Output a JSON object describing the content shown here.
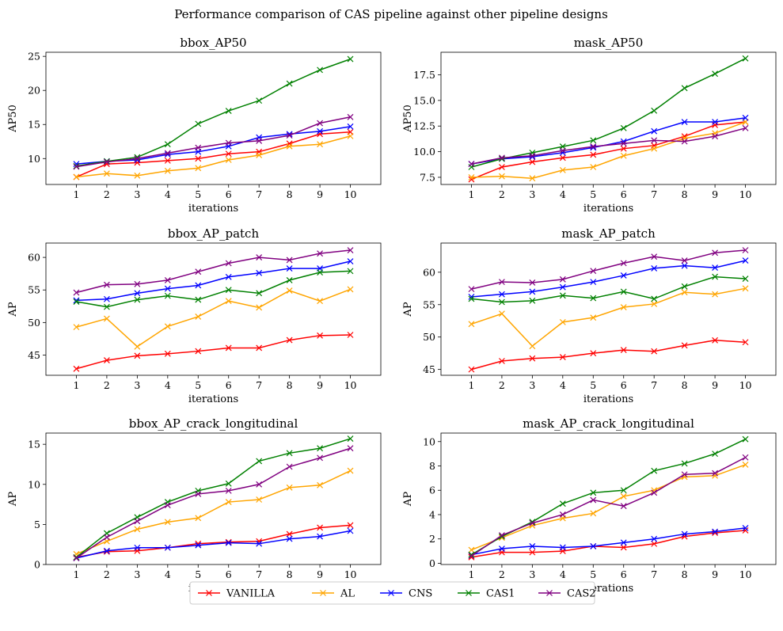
{
  "figure": {
    "suptitle": "Performance comparison of CAS pipeline against other pipeline designs"
  },
  "legend": {
    "placement": "bottom-center",
    "entries": [
      {
        "name": "VANILLA",
        "color": "#ff0000"
      },
      {
        "name": "AL",
        "color": "#ffa500"
      },
      {
        "name": "CNS",
        "color": "#0000ff"
      },
      {
        "name": "CAS1",
        "color": "#008000"
      },
      {
        "name": "CAS2",
        "color": "#800080"
      }
    ]
  },
  "chart_data": [
    {
      "type": "line",
      "title": "bbox_AP50",
      "xlabel": "iterations",
      "ylabel": "AP50",
      "x": [
        1,
        2,
        3,
        4,
        5,
        6,
        7,
        8,
        9,
        10
      ],
      "xlim": [
        0,
        11
      ],
      "ylim": [
        6.2,
        25.6
      ],
      "yticks": [
        10,
        15,
        20,
        25
      ],
      "ytick_labels": [
        "10",
        "15",
        "20",
        "25"
      ],
      "series": [
        {
          "name": "VANILLA",
          "color": "#ff0000",
          "values": [
            7.3,
            9.2,
            9.4,
            9.7,
            10.0,
            10.7,
            11.0,
            12.2,
            13.6,
            13.9
          ]
        },
        {
          "name": "AL",
          "color": "#ffa500",
          "values": [
            7.3,
            7.8,
            7.5,
            8.2,
            8.6,
            9.8,
            10.5,
            11.8,
            12.1,
            13.3
          ]
        },
        {
          "name": "CNS",
          "color": "#0000ff",
          "values": [
            9.2,
            9.6,
            9.8,
            10.6,
            11.0,
            11.8,
            13.1,
            13.6,
            14.0,
            14.7
          ]
        },
        {
          "name": "CAS1",
          "color": "#008000",
          "values": [
            8.9,
            9.6,
            10.2,
            12.1,
            15.1,
            17.0,
            18.5,
            21.0,
            23.0,
            24.6
          ]
        },
        {
          "name": "CAS2",
          "color": "#800080",
          "values": [
            8.8,
            9.5,
            10.0,
            10.8,
            11.6,
            12.3,
            12.6,
            13.4,
            15.2,
            16.1
          ]
        }
      ]
    },
    {
      "type": "line",
      "title": "mask_AP50",
      "xlabel": "iterations",
      "ylabel": "AP50",
      "x": [
        1,
        2,
        3,
        4,
        5,
        6,
        7,
        8,
        9,
        10
      ],
      "xlim": [
        0,
        11
      ],
      "ylim": [
        6.8,
        19.7
      ],
      "yticks": [
        7.5,
        10.0,
        12.5,
        15.0,
        17.5
      ],
      "ytick_labels": [
        "7.5",
        "10.0",
        "12.5",
        "15.0",
        "17.5"
      ],
      "series": [
        {
          "name": "VANILLA",
          "color": "#ff0000",
          "values": [
            7.3,
            8.5,
            9.0,
            9.4,
            9.7,
            10.3,
            10.6,
            11.5,
            12.6,
            12.9
          ]
        },
        {
          "name": "AL",
          "color": "#ffa500",
          "values": [
            7.5,
            7.6,
            7.4,
            8.2,
            8.5,
            9.6,
            10.3,
            11.3,
            11.8,
            12.9
          ]
        },
        {
          "name": "CNS",
          "color": "#0000ff",
          "values": [
            8.8,
            9.3,
            9.5,
            9.9,
            10.4,
            11.0,
            12.0,
            12.9,
            12.9,
            13.3
          ]
        },
        {
          "name": "CAS1",
          "color": "#008000",
          "values": [
            8.5,
            9.3,
            9.9,
            10.5,
            11.1,
            12.3,
            14.0,
            16.2,
            17.6,
            19.1
          ]
        },
        {
          "name": "CAS2",
          "color": "#800080",
          "values": [
            8.8,
            9.4,
            9.6,
            10.1,
            10.5,
            10.8,
            11.1,
            11.0,
            11.5,
            12.3
          ]
        }
      ]
    },
    {
      "type": "line",
      "title": "bbox_AP_patch",
      "xlabel": "iterations",
      "ylabel": "AP",
      "x": [
        1,
        2,
        3,
        4,
        5,
        6,
        7,
        8,
        9,
        10
      ],
      "xlim": [
        0,
        11
      ],
      "ylim": [
        41.9,
        62.2
      ],
      "yticks": [
        45,
        50,
        55,
        60
      ],
      "ytick_labels": [
        "45",
        "50",
        "55",
        "60"
      ],
      "series": [
        {
          "name": "VANILLA",
          "color": "#ff0000",
          "values": [
            42.9,
            44.2,
            44.9,
            45.2,
            45.6,
            46.1,
            46.1,
            47.3,
            48.0,
            48.1
          ]
        },
        {
          "name": "AL",
          "color": "#ffa500",
          "values": [
            49.3,
            50.6,
            46.3,
            49.4,
            50.9,
            53.3,
            52.3,
            54.9,
            53.3,
            55.1
          ]
        },
        {
          "name": "CNS",
          "color": "#0000ff",
          "values": [
            53.4,
            53.6,
            54.5,
            55.2,
            55.7,
            57.0,
            57.6,
            58.3,
            58.3,
            59.4
          ]
        },
        {
          "name": "CAS1",
          "color": "#008000",
          "values": [
            53.2,
            52.4,
            53.5,
            54.1,
            53.5,
            55.0,
            54.5,
            56.5,
            57.7,
            57.9
          ]
        },
        {
          "name": "CAS2",
          "color": "#800080",
          "values": [
            54.6,
            55.8,
            55.9,
            56.5,
            57.8,
            59.1,
            60.0,
            59.6,
            60.6,
            61.1
          ]
        }
      ]
    },
    {
      "type": "line",
      "title": "mask_AP_patch",
      "xlabel": "iterations",
      "ylabel": "AP",
      "x": [
        1,
        2,
        3,
        4,
        5,
        6,
        7,
        8,
        9,
        10
      ],
      "xlim": [
        0,
        11
      ],
      "ylim": [
        44.1,
        64.5
      ],
      "yticks": [
        45,
        50,
        55,
        60
      ],
      "ytick_labels": [
        "45",
        "50",
        "55",
        "60"
      ],
      "series": [
        {
          "name": "VANILLA",
          "color": "#ff0000",
          "values": [
            45.0,
            46.3,
            46.7,
            46.9,
            47.5,
            48.0,
            47.8,
            48.7,
            49.5,
            49.2
          ]
        },
        {
          "name": "AL",
          "color": "#ffa500",
          "values": [
            52.0,
            53.6,
            48.6,
            52.3,
            53.0,
            54.6,
            55.1,
            56.9,
            56.6,
            57.5
          ]
        },
        {
          "name": "CNS",
          "color": "#0000ff",
          "values": [
            56.2,
            56.6,
            57.0,
            57.7,
            58.5,
            59.5,
            60.6,
            61.0,
            60.7,
            61.8
          ]
        },
        {
          "name": "CAS1",
          "color": "#008000",
          "values": [
            55.9,
            55.4,
            55.6,
            56.4,
            56.0,
            57.0,
            55.9,
            57.8,
            59.3,
            59.0
          ]
        },
        {
          "name": "CAS2",
          "color": "#800080",
          "values": [
            57.4,
            58.5,
            58.4,
            58.9,
            60.2,
            61.4,
            62.4,
            61.8,
            63.0,
            63.4
          ]
        }
      ]
    },
    {
      "type": "line",
      "title": "bbox_AP_crack_longitudinal",
      "xlabel": "iterations",
      "ylabel": "AP",
      "x": [
        1,
        2,
        3,
        4,
        5,
        6,
        7,
        8,
        9,
        10
      ],
      "xlim": [
        0,
        11
      ],
      "ylim": [
        0,
        16.4
      ],
      "yticks": [
        0,
        5,
        10,
        15
      ],
      "ytick_labels": [
        "0",
        "5",
        "10",
        "15"
      ],
      "series": [
        {
          "name": "VANILLA",
          "color": "#ff0000",
          "values": [
            0.9,
            1.6,
            1.7,
            2.1,
            2.6,
            2.8,
            2.9,
            3.8,
            4.6,
            4.9
          ]
        },
        {
          "name": "AL",
          "color": "#ffa500",
          "values": [
            1.3,
            2.9,
            4.4,
            5.3,
            5.8,
            7.8,
            8.1,
            9.6,
            9.9,
            11.7
          ]
        },
        {
          "name": "CNS",
          "color": "#0000ff",
          "values": [
            0.8,
            1.7,
            2.1,
            2.1,
            2.4,
            2.7,
            2.6,
            3.2,
            3.5,
            4.2
          ]
        },
        {
          "name": "CAS1",
          "color": "#008000",
          "values": [
            0.9,
            3.9,
            5.9,
            7.8,
            9.2,
            10.1,
            12.9,
            13.9,
            14.5,
            15.7
          ]
        },
        {
          "name": "CAS2",
          "color": "#800080",
          "values": [
            0.8,
            3.4,
            5.4,
            7.4,
            8.8,
            9.2,
            10.0,
            12.2,
            13.3,
            14.5
          ]
        }
      ]
    },
    {
      "type": "line",
      "title": "mask_AP_crack_longitudinal",
      "xlabel": "iterations",
      "ylabel": "AP",
      "x": [
        1,
        2,
        3,
        4,
        5,
        6,
        7,
        8,
        9,
        10
      ],
      "xlim": [
        0,
        11
      ],
      "ylim": [
        -0.1,
        10.7
      ],
      "yticks": [
        0,
        2,
        4,
        6,
        8,
        10
      ],
      "ytick_labels": [
        "0",
        "2",
        "4",
        "6",
        "8",
        "10"
      ],
      "series": [
        {
          "name": "VANILLA",
          "color": "#ff0000",
          "values": [
            0.5,
            0.9,
            0.9,
            1.0,
            1.4,
            1.3,
            1.6,
            2.2,
            2.5,
            2.7
          ]
        },
        {
          "name": "AL",
          "color": "#ffa500",
          "values": [
            1.1,
            2.1,
            3.1,
            3.7,
            4.1,
            5.5,
            6.0,
            7.1,
            7.2,
            8.1
          ]
        },
        {
          "name": "CNS",
          "color": "#0000ff",
          "values": [
            0.7,
            1.2,
            1.4,
            1.3,
            1.4,
            1.7,
            2.0,
            2.4,
            2.6,
            2.9
          ]
        },
        {
          "name": "CAS1",
          "color": "#008000",
          "values": [
            0.7,
            2.2,
            3.4,
            4.9,
            5.8,
            6.0,
            7.6,
            8.2,
            9.0,
            10.2
          ]
        },
        {
          "name": "CAS2",
          "color": "#800080",
          "values": [
            0.6,
            2.3,
            3.3,
            4.0,
            5.2,
            4.7,
            5.8,
            7.3,
            7.4,
            8.7
          ]
        }
      ]
    }
  ]
}
